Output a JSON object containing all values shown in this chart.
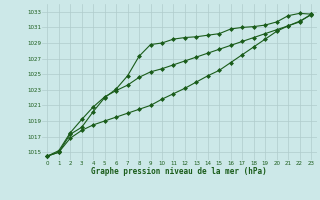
{
  "xlabel": "Graphe pression niveau de la mer (hPa)",
  "ylabel": "",
  "background_color": "#cce8e8",
  "grid_color": "#b0cccc",
  "line_color": "#1a5c1a",
  "text_color": "#1a5c1a",
  "xlim": [
    -0.5,
    23.5
  ],
  "ylim": [
    1014,
    1034
  ],
  "yticks": [
    1015,
    1017,
    1019,
    1021,
    1023,
    1025,
    1027,
    1029,
    1031,
    1033
  ],
  "xticks": [
    0,
    1,
    2,
    3,
    4,
    5,
    6,
    7,
    8,
    9,
    10,
    11,
    12,
    13,
    14,
    15,
    16,
    17,
    18,
    19,
    20,
    21,
    22,
    23
  ],
  "line1_x": [
    0,
    1,
    2,
    3,
    4,
    5,
    6,
    7,
    8,
    9,
    10,
    11,
    12,
    13,
    14,
    15,
    16,
    17,
    18,
    19,
    20,
    21,
    22,
    23
  ],
  "line1_y": [
    1014.5,
    1015.0,
    1017.3,
    1018.2,
    1020.2,
    1022.0,
    1023.1,
    1024.8,
    1027.3,
    1028.8,
    1029.0,
    1029.5,
    1029.7,
    1029.8,
    1030.0,
    1030.2,
    1030.8,
    1031.0,
    1031.1,
    1031.3,
    1031.7,
    1032.5,
    1032.8,
    1032.7
  ],
  "line2_x": [
    0,
    1,
    2,
    3,
    4,
    5,
    6,
    7,
    8,
    9,
    10,
    11,
    12,
    13,
    14,
    15,
    16,
    17,
    18,
    19,
    20,
    21,
    22,
    23
  ],
  "line2_y": [
    1014.5,
    1015.0,
    1016.8,
    1017.8,
    1018.5,
    1019.0,
    1019.5,
    1020.0,
    1020.5,
    1021.0,
    1021.8,
    1022.5,
    1023.2,
    1024.0,
    1024.8,
    1025.5,
    1026.5,
    1027.5,
    1028.5,
    1029.5,
    1030.5,
    1031.2,
    1031.8,
    1032.6
  ],
  "line3_x": [
    0,
    1,
    2,
    3,
    4,
    5,
    6,
    7,
    8,
    9,
    10,
    11,
    12,
    13,
    14,
    15,
    16,
    17,
    18,
    19,
    20,
    21,
    22,
    23
  ],
  "line3_y": [
    1014.5,
    1015.2,
    1017.5,
    1019.2,
    1020.8,
    1022.1,
    1022.9,
    1023.6,
    1024.6,
    1025.3,
    1025.7,
    1026.2,
    1026.7,
    1027.2,
    1027.7,
    1028.2,
    1028.7,
    1029.2,
    1029.7,
    1030.2,
    1030.7,
    1031.2,
    1031.7,
    1032.7
  ],
  "marker": "D",
  "markersize": 2.0,
  "linewidth": 0.8
}
